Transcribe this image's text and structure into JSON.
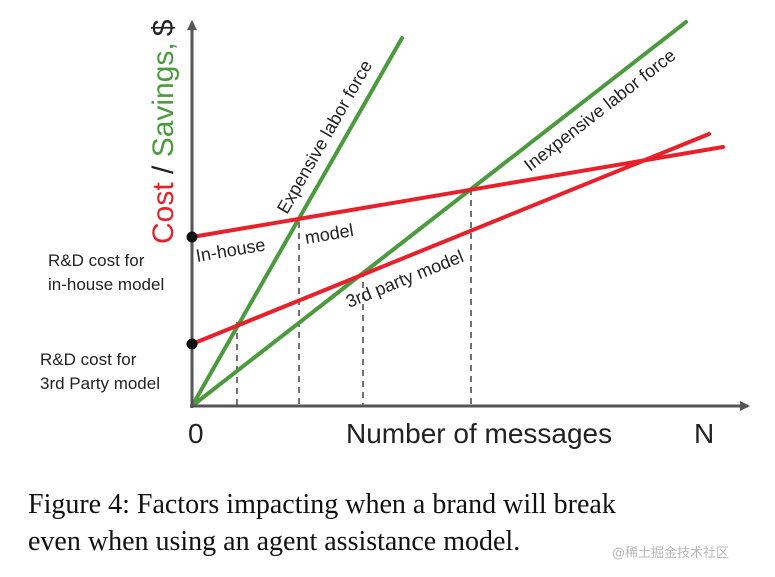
{
  "axes": {
    "y_title_cost": "Cost",
    "y_title_sep": " / ",
    "y_title_savings": "Savings,",
    "y_title_unit": "$",
    "x_title": "Number of messages",
    "x_origin": "0",
    "x_end": "N"
  },
  "lines": {
    "expensive_labor": "Expensive labor force",
    "inexpensive_labor": "Inexpensive labor force",
    "inhouse_part1": "In-house",
    "inhouse_part2": "model",
    "third_party": "3rd party model"
  },
  "annotations": {
    "rd_inhouse_1": "R&D cost for",
    "rd_inhouse_2": "in-house model",
    "rd_3rd_1": "R&D cost for",
    "rd_3rd_2": "3rd Party model"
  },
  "caption": {
    "line1": "Figure 4:  Factors impacting when a brand will break",
    "line2": "even when using an agent assistance model."
  },
  "watermark": "@稀土掘金技术社区",
  "colors": {
    "cost": "#e8202a",
    "savings": "#4c9a3e",
    "axis": "#555555",
    "text": "#222222"
  }
}
